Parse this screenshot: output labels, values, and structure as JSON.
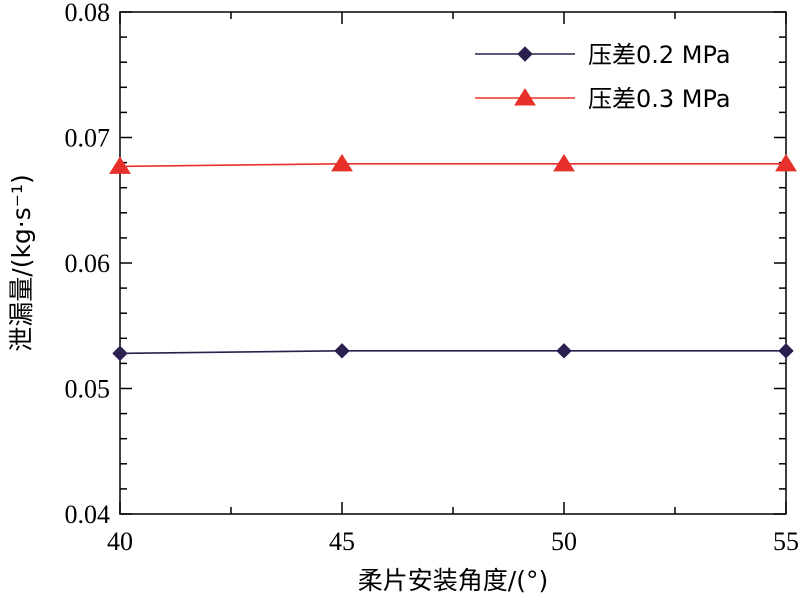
{
  "chart_data": {
    "type": "line",
    "xlabel": "柔片安装角度/(°)",
    "ylabel": "泄漏量/(kg·s⁻¹)",
    "x": [
      40,
      45,
      50,
      55
    ],
    "x_ticks": [
      "40",
      "45",
      "50",
      "55"
    ],
    "y_ticks": [
      "0.04",
      "0.05",
      "0.06",
      "0.07",
      "0.08"
    ],
    "xlim": [
      40,
      55
    ],
    "ylim": [
      0.04,
      0.08
    ],
    "grid": false,
    "legend_position": "top-right",
    "series": [
      {
        "name": "压差0.2 MPa",
        "values": [
          0.0528,
          0.053,
          0.053,
          0.053
        ],
        "color": "#2b1f4f",
        "marker": "diamond"
      },
      {
        "name": "压差0.3 MPa",
        "values": [
          0.0677,
          0.0679,
          0.0679,
          0.0679
        ],
        "color": "#e8302a",
        "marker": "triangle"
      }
    ]
  }
}
